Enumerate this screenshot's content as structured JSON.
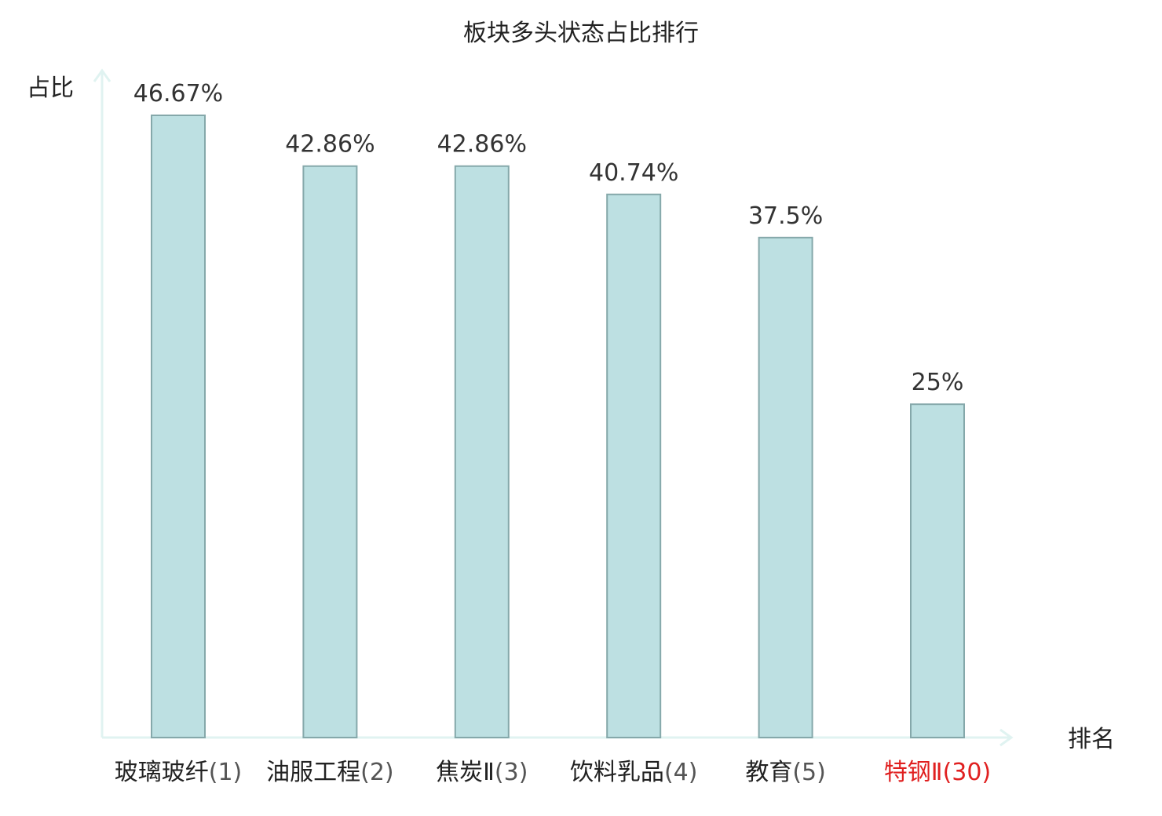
{
  "chart_data": {
    "type": "bar",
    "title": "板块多头状态占比排行",
    "xlabel": "排名",
    "ylabel": "占比",
    "categories": [
      {
        "name": "玻璃玻纤",
        "rank": "(1)"
      },
      {
        "name": "油服工程",
        "rank": "(2)"
      },
      {
        "name": "焦炭Ⅱ",
        "rank": "(3)"
      },
      {
        "name": "饮料乳品",
        "rank": "(4)"
      },
      {
        "name": "教育",
        "rank": "(5)"
      },
      {
        "name": "特钢Ⅱ",
        "rank": "(30)"
      }
    ],
    "values": [
      46.67,
      42.86,
      42.86,
      40.74,
      37.5,
      25
    ],
    "value_labels": [
      "46.67%",
      "42.86%",
      "42.86%",
      "40.74%",
      "37.5%",
      "25%"
    ],
    "highlight_index": 5,
    "ylim": [
      0,
      50
    ],
    "grid": false,
    "colors": {
      "bar_fill": "#bde0e2",
      "bar_stroke": "#85a8aa",
      "axis": "#e0f3f1",
      "text": "#222222",
      "value_text": "#333333",
      "highlight_text": "#e02020"
    }
  }
}
